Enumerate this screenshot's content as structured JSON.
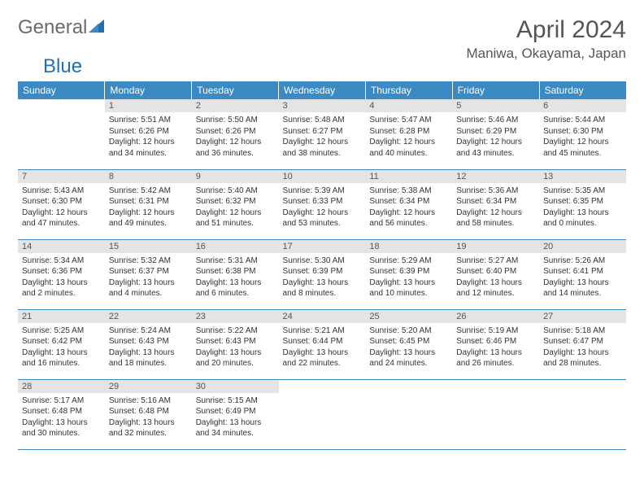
{
  "logo": {
    "text1": "General",
    "text2": "Blue"
  },
  "header": {
    "month_title": "April 2024",
    "location": "Maniwa, Okayama, Japan"
  },
  "colors": {
    "header_bg": "#3b8ac4",
    "header_text": "#ffffff",
    "daynum_bg": "#e4e4e4",
    "row_border": "#3b8ac4",
    "logo_gray": "#6a6a6a",
    "logo_blue": "#1f6fb2"
  },
  "day_labels": [
    "Sunday",
    "Monday",
    "Tuesday",
    "Wednesday",
    "Thursday",
    "Friday",
    "Saturday"
  ],
  "weeks": [
    [
      null,
      {
        "n": "1",
        "sr": "5:51 AM",
        "ss": "6:26 PM",
        "dl": "12 hours and 34 minutes."
      },
      {
        "n": "2",
        "sr": "5:50 AM",
        "ss": "6:26 PM",
        "dl": "12 hours and 36 minutes."
      },
      {
        "n": "3",
        "sr": "5:48 AM",
        "ss": "6:27 PM",
        "dl": "12 hours and 38 minutes."
      },
      {
        "n": "4",
        "sr": "5:47 AM",
        "ss": "6:28 PM",
        "dl": "12 hours and 40 minutes."
      },
      {
        "n": "5",
        "sr": "5:46 AM",
        "ss": "6:29 PM",
        "dl": "12 hours and 43 minutes."
      },
      {
        "n": "6",
        "sr": "5:44 AM",
        "ss": "6:30 PM",
        "dl": "12 hours and 45 minutes."
      }
    ],
    [
      {
        "n": "7",
        "sr": "5:43 AM",
        "ss": "6:30 PM",
        "dl": "12 hours and 47 minutes."
      },
      {
        "n": "8",
        "sr": "5:42 AM",
        "ss": "6:31 PM",
        "dl": "12 hours and 49 minutes."
      },
      {
        "n": "9",
        "sr": "5:40 AM",
        "ss": "6:32 PM",
        "dl": "12 hours and 51 minutes."
      },
      {
        "n": "10",
        "sr": "5:39 AM",
        "ss": "6:33 PM",
        "dl": "12 hours and 53 minutes."
      },
      {
        "n": "11",
        "sr": "5:38 AM",
        "ss": "6:34 PM",
        "dl": "12 hours and 56 minutes."
      },
      {
        "n": "12",
        "sr": "5:36 AM",
        "ss": "6:34 PM",
        "dl": "12 hours and 58 minutes."
      },
      {
        "n": "13",
        "sr": "5:35 AM",
        "ss": "6:35 PM",
        "dl": "13 hours and 0 minutes."
      }
    ],
    [
      {
        "n": "14",
        "sr": "5:34 AM",
        "ss": "6:36 PM",
        "dl": "13 hours and 2 minutes."
      },
      {
        "n": "15",
        "sr": "5:32 AM",
        "ss": "6:37 PM",
        "dl": "13 hours and 4 minutes."
      },
      {
        "n": "16",
        "sr": "5:31 AM",
        "ss": "6:38 PM",
        "dl": "13 hours and 6 minutes."
      },
      {
        "n": "17",
        "sr": "5:30 AM",
        "ss": "6:39 PM",
        "dl": "13 hours and 8 minutes."
      },
      {
        "n": "18",
        "sr": "5:29 AM",
        "ss": "6:39 PM",
        "dl": "13 hours and 10 minutes."
      },
      {
        "n": "19",
        "sr": "5:27 AM",
        "ss": "6:40 PM",
        "dl": "13 hours and 12 minutes."
      },
      {
        "n": "20",
        "sr": "5:26 AM",
        "ss": "6:41 PM",
        "dl": "13 hours and 14 minutes."
      }
    ],
    [
      {
        "n": "21",
        "sr": "5:25 AM",
        "ss": "6:42 PM",
        "dl": "13 hours and 16 minutes."
      },
      {
        "n": "22",
        "sr": "5:24 AM",
        "ss": "6:43 PM",
        "dl": "13 hours and 18 minutes."
      },
      {
        "n": "23",
        "sr": "5:22 AM",
        "ss": "6:43 PM",
        "dl": "13 hours and 20 minutes."
      },
      {
        "n": "24",
        "sr": "5:21 AM",
        "ss": "6:44 PM",
        "dl": "13 hours and 22 minutes."
      },
      {
        "n": "25",
        "sr": "5:20 AM",
        "ss": "6:45 PM",
        "dl": "13 hours and 24 minutes."
      },
      {
        "n": "26",
        "sr": "5:19 AM",
        "ss": "6:46 PM",
        "dl": "13 hours and 26 minutes."
      },
      {
        "n": "27",
        "sr": "5:18 AM",
        "ss": "6:47 PM",
        "dl": "13 hours and 28 minutes."
      }
    ],
    [
      {
        "n": "28",
        "sr": "5:17 AM",
        "ss": "6:48 PM",
        "dl": "13 hours and 30 minutes."
      },
      {
        "n": "29",
        "sr": "5:16 AM",
        "ss": "6:48 PM",
        "dl": "13 hours and 32 minutes."
      },
      {
        "n": "30",
        "sr": "5:15 AM",
        "ss": "6:49 PM",
        "dl": "13 hours and 34 minutes."
      },
      null,
      null,
      null,
      null
    ]
  ],
  "labels": {
    "sunrise": "Sunrise:",
    "sunset": "Sunset:",
    "daylight": "Daylight:"
  }
}
